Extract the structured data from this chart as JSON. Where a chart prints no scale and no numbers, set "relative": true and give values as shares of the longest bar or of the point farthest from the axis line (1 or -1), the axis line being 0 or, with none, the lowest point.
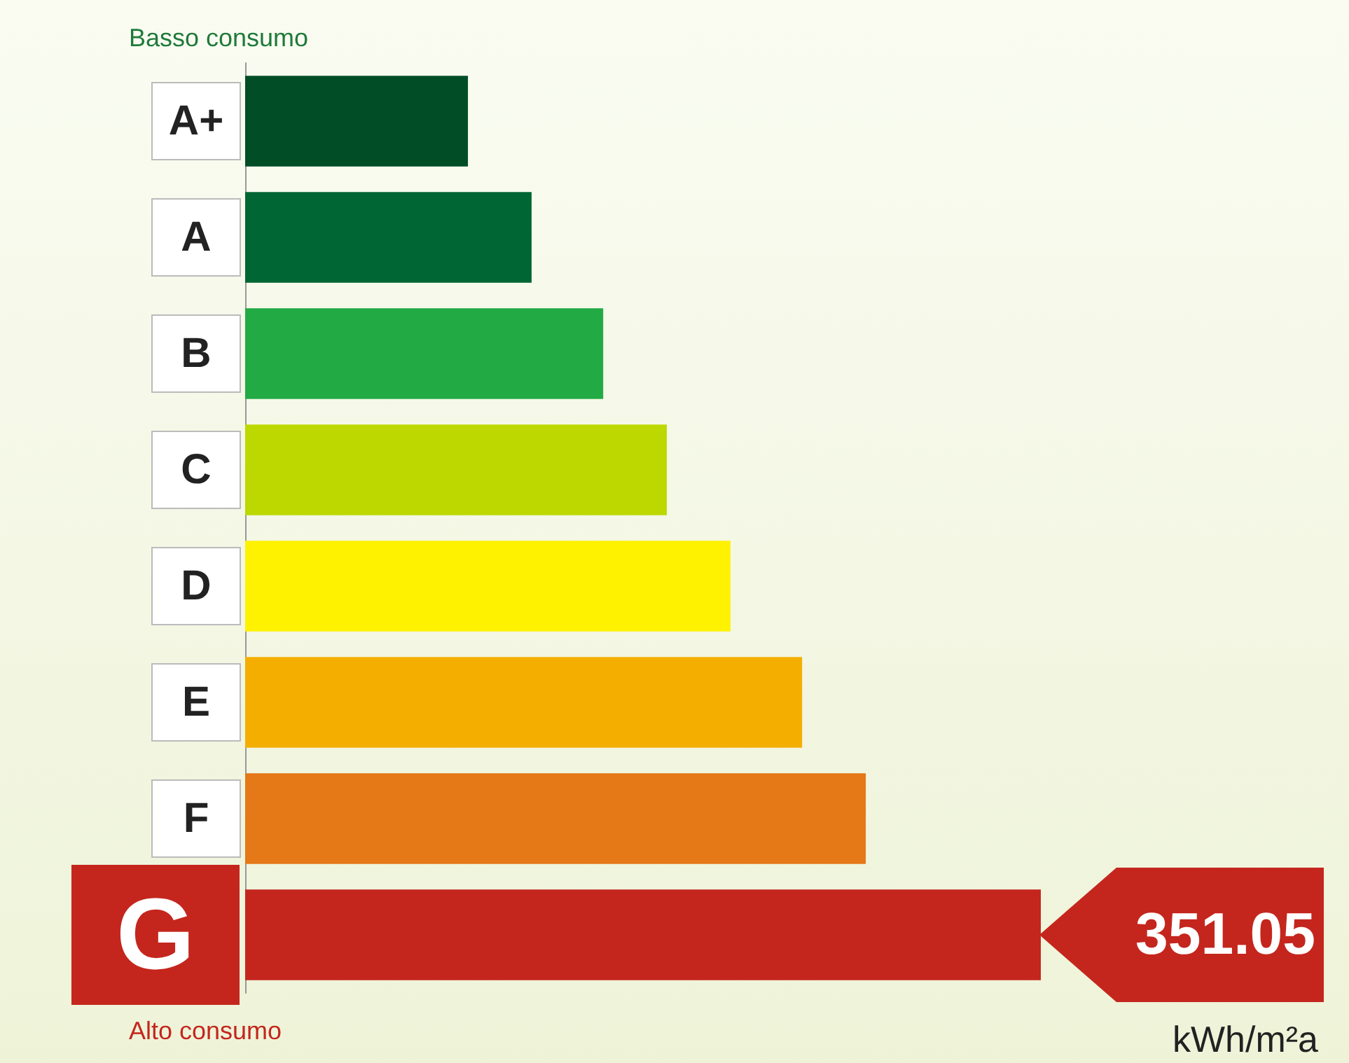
{
  "chart_data": {
    "type": "bar",
    "orientation": "horizontal",
    "relative": true,
    "categories": [
      "A+",
      "A",
      "B",
      "C",
      "D",
      "E",
      "F",
      "G"
    ],
    "values": [
      0.28,
      0.36,
      0.45,
      0.53,
      0.61,
      0.7,
      0.78,
      1
    ],
    "colors": [
      "#004d26",
      "#006633",
      "#22aa44",
      "#bcd800",
      "#fff200",
      "#f4ae00",
      "#e57817",
      "#c4261d"
    ],
    "annotations": [
      "Basso consumo",
      "Alto consumo",
      "351.05",
      "kWh/m²a"
    ]
  }
}
